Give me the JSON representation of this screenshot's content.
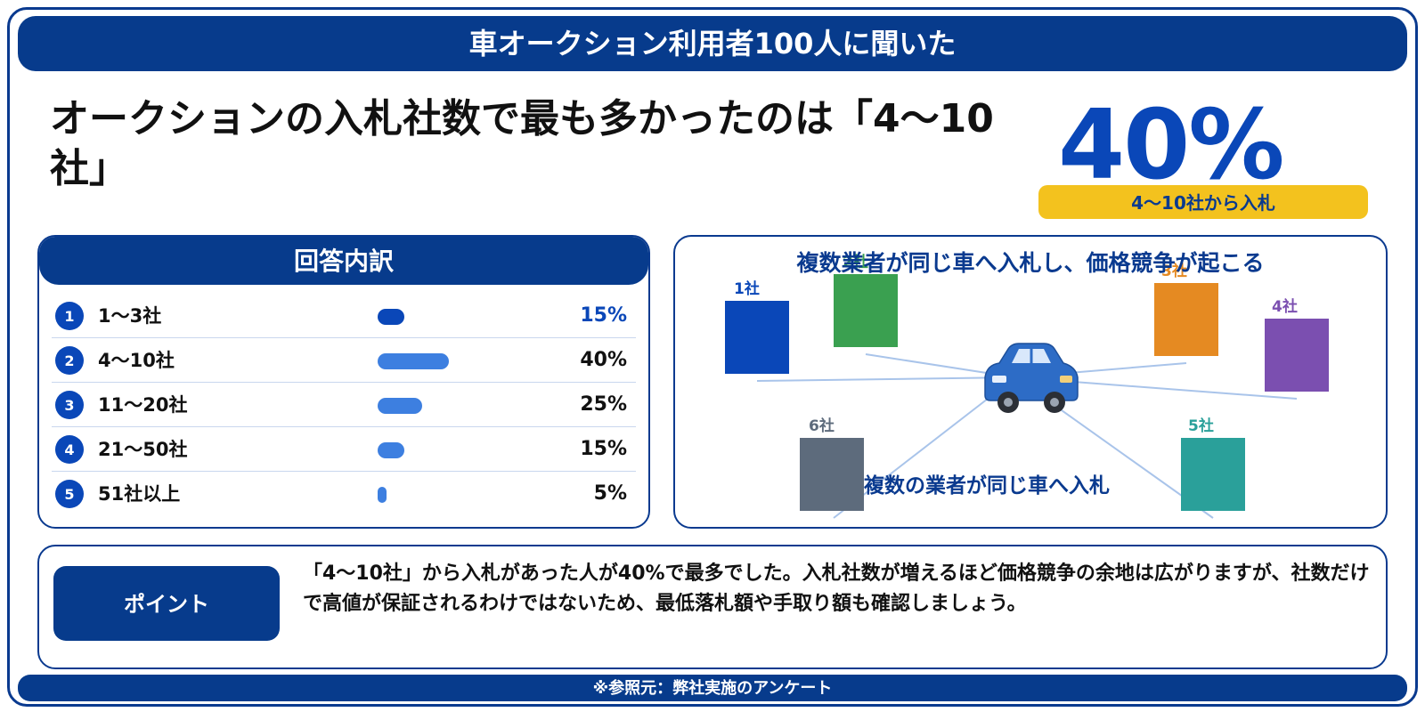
{
  "header": {
    "title": "車オークション利用者100人に聞いた"
  },
  "headline": {
    "title": "オークションの入札社数で最も多かったのは「4〜10社」"
  },
  "highlight": {
    "value": "40%",
    "caption": "4〜10社から入札"
  },
  "breakdown": {
    "title": "回答内訳",
    "rows": [
      {
        "num": "1",
        "label": "1〜3社",
        "pct_text": "15%",
        "percent": 15
      },
      {
        "num": "2",
        "label": "4〜10社",
        "pct_text": "40%",
        "percent": 40
      },
      {
        "num": "3",
        "label": "11〜20社",
        "pct_text": "25%",
        "percent": 25
      },
      {
        "num": "4",
        "label": "21〜50社",
        "pct_text": "15%",
        "percent": 15
      },
      {
        "num": "5",
        "label": "51社以上",
        "pct_text": "5%",
        "percent": 5
      }
    ],
    "colors": {
      "accent": "#0a47b8",
      "bar": "#3d7fe0"
    }
  },
  "diagram": {
    "title": "複数業者が同じ車へ入札し、価格競争が起こる",
    "caption": "複数の業者が同じ車へ入札",
    "bidders": [
      {
        "label": "1社",
        "color": "#0a47b8"
      },
      {
        "label": "2社",
        "color": "#3aa050"
      },
      {
        "label": "3社",
        "color": "#e58a22"
      },
      {
        "label": "4社",
        "color": "#7b4fb0"
      },
      {
        "label": "5社",
        "color": "#2aa09a"
      },
      {
        "label": "6社",
        "color": "#5d6b7c"
      }
    ],
    "car_icon": "car-icon"
  },
  "point": {
    "label": "ポイント",
    "text": "「4〜10社」から入札があった人が40%で最多でした。入札社数が増えるほど価格競争の余地は広がりますが、社数だけで高値が保証されるわけではないため、最低落札額や手取り額も確認しましょう。"
  },
  "footer": {
    "source": "※参照元：弊社実施のアンケート"
  }
}
